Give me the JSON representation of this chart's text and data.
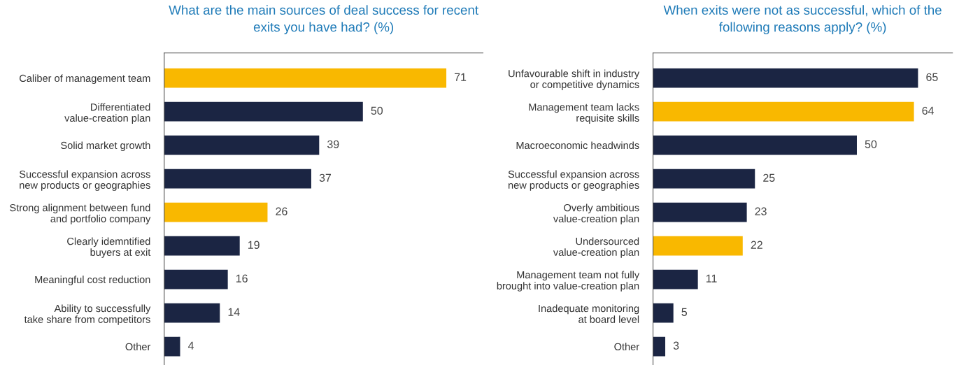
{
  "chart_data": [
    {
      "type": "bar",
      "orientation": "horizontal",
      "title": "What are the main sources of deal success for recent\nexits you have had? (%)",
      "categories": [
        "Caliber of management team",
        "Differentiated\nvalue-creation plan",
        "Solid market growth",
        "Successful expansion across\nnew products or geographies",
        "Strong alignment between fund\nand portfolio company",
        "Clearly idemntified\nbuyers at exit",
        "Meaningful cost reduction",
        "Ability to successfully\ntake share from competitors",
        "Other"
      ],
      "values": [
        71,
        50,
        39,
        37,
        26,
        19,
        16,
        14,
        4
      ],
      "colors": [
        "#f9b800",
        "#1b2543",
        "#1b2543",
        "#1b2543",
        "#f9b800",
        "#1b2543",
        "#1b2543",
        "#1b2543",
        "#1b2543"
      ],
      "data_labels": true,
      "tick_labels": "y",
      "grid": false,
      "legend": false
    },
    {
      "type": "bar",
      "orientation": "horizontal",
      "title": "When exits were not as successful, which of the\nfollowing reasons apply? (%)",
      "categories": [
        "Unfavourable shift in industry\nor competitive dynamics",
        "Management team lacks\nrequisite skills",
        "Macroeconomic headwinds",
        "Successful expansion across\nnew products or geographies",
        "Overly ambitious\nvalue-creation plan",
        "Undersourced\nvalue-creation plan",
        "Management team not fully\nbrought into value-creation plan",
        "Inadequate monitoring\nat board level",
        "Other"
      ],
      "values": [
        65,
        64,
        50,
        25,
        23,
        22,
        11,
        5,
        3
      ],
      "colors": [
        "#1b2543",
        "#f9b800",
        "#1b2543",
        "#1b2543",
        "#1b2543",
        "#f9b800",
        "#1b2543",
        "#1b2543",
        "#1b2543"
      ],
      "data_labels": true,
      "tick_labels": "y",
      "grid": false,
      "legend": false
    }
  ]
}
